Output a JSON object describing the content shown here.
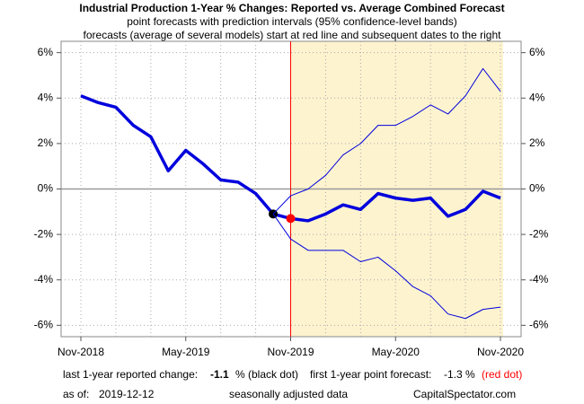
{
  "chart_data": {
    "type": "line",
    "title": "Industrial Production 1-Year % Changes: Reported vs. Average Combined Forecast",
    "subtitle": [
      "point forecasts with prediction intervals (95% confidence-level bands)",
      "forecasts (average of several models) start at red line and subsequent dates to the right"
    ],
    "categories": [
      "Nov-2018",
      null,
      null,
      null,
      null,
      null,
      "May-2019",
      null,
      null,
      null,
      null,
      null,
      "Nov-2019",
      null,
      null,
      null,
      null,
      null,
      "May-2020",
      null,
      null,
      null,
      null,
      null,
      "Nov-2020"
    ],
    "series": [
      {
        "color": "#0000dd",
        "width": 3.5,
        "values": [
          4.1,
          3.8,
          3.6,
          2.8,
          2.3,
          0.8,
          1.7,
          1.1,
          0.4,
          0.3,
          -0.2,
          -1.1,
          -1.3,
          -1.4,
          -1.1,
          -0.7,
          -0.9,
          -0.2,
          -0.4,
          -0.5,
          -0.4,
          -1.2,
          -0.9,
          -0.1,
          -0.4
        ],
        "marker_colors": [
          null,
          null,
          null,
          null,
          null,
          null,
          null,
          null,
          null,
          null,
          null,
          "#000000",
          "#ff0000",
          null,
          null,
          null,
          null,
          null,
          null,
          null,
          null,
          null,
          null,
          null,
          null
        ]
      },
      {
        "color": "#0000dd",
        "width": 1,
        "values": [
          null,
          null,
          null,
          null,
          null,
          null,
          null,
          null,
          null,
          null,
          null,
          -1.1,
          -0.3,
          0,
          0.6,
          1.5,
          2.0,
          2.8,
          2.8,
          3.2,
          3.7,
          3.3,
          4.1,
          5.3,
          4.3
        ]
      },
      {
        "color": "#0000dd",
        "width": 1,
        "values": [
          null,
          null,
          null,
          null,
          null,
          null,
          null,
          null,
          null,
          null,
          null,
          -1.1,
          -2.2,
          -2.7,
          -2.7,
          -2.7,
          -3.2,
          -3.0,
          -3.6,
          -4.3,
          -4.7,
          -5.5,
          -5.7,
          -5.3,
          -5.2
        ]
      }
    ],
    "ylim": [
      -6.5,
      6.5
    ],
    "yticks": [
      {
        "value": -6,
        "label": "-6%"
      },
      {
        "value": -4,
        "label": "-4%"
      },
      {
        "value": -2,
        "label": "-2%"
      },
      {
        "value": 0,
        "label": "0%"
      },
      {
        "value": 2,
        "label": "2%"
      },
      {
        "value": 4,
        "label": "4%"
      },
      {
        "value": 6,
        "label": "6%"
      }
    ],
    "grid": true,
    "forecast_color": "#fdf3cf",
    "footer": [
      [
        "last 1-year reported change:",
        "-1.1",
        "% (black dot)",
        "first 1-year point forecast:",
        "-1.3 %",
        "(red dot)"
      ],
      [
        "as of:",
        "2019-12-12",
        "seasonally adjusted data",
        "CapitalSpectator.com"
      ]
    ]
  }
}
